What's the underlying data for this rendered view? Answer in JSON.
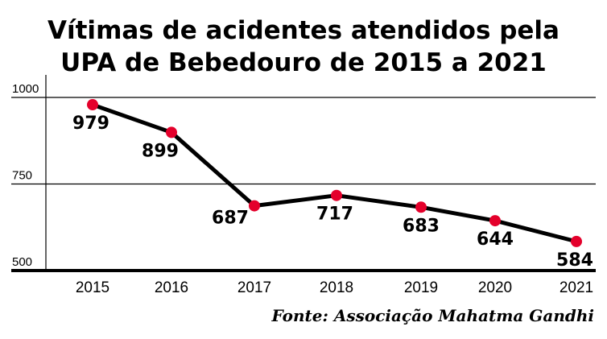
{
  "chart_data": {
    "type": "line",
    "title": [
      "Vítimas de acidentes atendidos pela",
      "UPA de Bebedouro de 2015 a 2021"
    ],
    "categories": [
      "2015",
      "2016",
      "2017",
      "2018",
      "2019",
      "2020",
      "2021"
    ],
    "values": [
      979,
      899,
      687,
      717,
      683,
      644,
      584
    ],
    "data_labels": [
      "979",
      "899",
      "687",
      "717",
      "683",
      "644",
      "584"
    ],
    "yticks": [
      "1000",
      "750",
      "500"
    ],
    "ytick_values": [
      1000,
      750,
      500
    ],
    "ylim": [
      500,
      1000
    ],
    "xlabel": "",
    "ylabel": "",
    "grid": true,
    "source": "Fonte: Associação Mahatma Gandhi",
    "colors": {
      "line": "#000000",
      "marker": "#e4002b"
    }
  }
}
